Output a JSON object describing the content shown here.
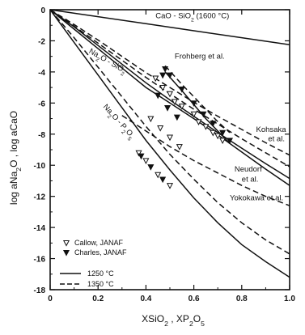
{
  "chart_data": {
    "type": "line",
    "xlim": [
      0,
      1.0
    ],
    "ylim": [
      -18,
      0
    ],
    "x_ticks": [
      "0",
      "0.2",
      "0.4",
      "0.6",
      "0.8",
      "1.0"
    ],
    "y_ticks": [
      "0",
      "-2",
      "-4",
      "-6",
      "-8",
      "-10",
      "-12",
      "-14",
      "-16",
      "-18"
    ],
    "xlabel": "X_SiO2 , X_P2O5",
    "ylabel": "log a_Na2O ,   log a_CaO",
    "grid": false,
    "legend_position": "bottom-left",
    "legend": {
      "markers": [
        {
          "symbol": "▽",
          "label": "Callow, JANAF"
        },
        {
          "symbol": "▼",
          "label": "Charles, JANAF"
        }
      ],
      "lines": [
        {
          "style": "solid",
          "label": "1250 °C"
        },
        {
          "style": "dashed",
          "label": "1350 °C"
        }
      ]
    },
    "annotations": [
      {
        "text": "CaO - SiO2   (1600 °C)",
        "x": 0.44,
        "y": -0.55
      },
      {
        "text": "Na2O - SiO2",
        "x": 0.16,
        "y": -2.75
      },
      {
        "text": "Frohberg et al.",
        "x": 0.52,
        "y": -3.15
      },
      {
        "text": "Na2O - P2O5",
        "x": 0.22,
        "y": -6.25
      },
      {
        "text": "Kohsaka",
        "x": 0.86,
        "y": -7.85
      },
      {
        "text": "et al.",
        "x": 0.91,
        "y": -8.45
      },
      {
        "text": "Neudorf",
        "x": 0.77,
        "y": -10.4
      },
      {
        "text": "et al.",
        "x": 0.8,
        "y": -11.05
      },
      {
        "text": "Yokokawa et al.",
        "x": 0.75,
        "y": -12.25
      }
    ],
    "series": [
      {
        "style": "solid",
        "x": [
          0,
          0.2,
          0.4,
          0.6,
          0.8,
          1.0
        ],
        "y": [
          0,
          -0.45,
          -0.9,
          -1.35,
          -1.8,
          -2.25
        ]
      },
      {
        "style": "solid",
        "x": [
          0,
          0.1,
          0.2,
          0.3,
          0.4,
          0.5,
          0.6,
          0.7,
          0.8,
          0.9,
          1.0
        ],
        "y": [
          0,
          -1.25,
          -2.5,
          -3.75,
          -5.0,
          -6.0,
          -7.0,
          -8.05,
          -9.15,
          -10.25,
          -11.3
        ]
      },
      {
        "style": "solid",
        "x": [
          0,
          0.1,
          0.2,
          0.3,
          0.4,
          0.5,
          0.6,
          0.7,
          0.8,
          0.9,
          1.0
        ],
        "y": [
          0,
          -1.1,
          -2.3,
          -3.5,
          -4.7,
          -5.8,
          -6.85,
          -7.9,
          -8.9,
          -9.9,
          -10.85
        ]
      },
      {
        "style": "dashed",
        "x": [
          0,
          0.1,
          0.2,
          0.3,
          0.4,
          0.5,
          0.6,
          0.7,
          0.8,
          0.9,
          1.0
        ],
        "y": [
          0,
          -1.05,
          -2.15,
          -3.25,
          -4.35,
          -5.4,
          -6.4,
          -7.35,
          -8.3,
          -9.2,
          -10.1
        ]
      },
      {
        "style": "dashed",
        "x": [
          0,
          0.1,
          0.2,
          0.3,
          0.4,
          0.5,
          0.6,
          0.7,
          0.8,
          0.9,
          1.0
        ],
        "y": [
          0,
          -0.95,
          -1.95,
          -3.0,
          -4.05,
          -5.0,
          -5.95,
          -6.85,
          -7.7,
          -8.55,
          -9.35
        ]
      },
      {
        "style": "solid",
        "x": [
          0.48,
          0.55,
          0.6,
          0.65,
          0.7,
          0.75
        ],
        "y": [
          -4.0,
          -5.2,
          -6.1,
          -7.0,
          -7.8,
          -8.6
        ]
      },
      {
        "style": "dashed",
        "x": [
          0.48,
          0.55,
          0.6,
          0.65,
          0.7,
          0.75
        ],
        "y": [
          -3.6,
          -4.8,
          -5.6,
          -6.4,
          -7.2,
          -7.9
        ]
      },
      {
        "style": "solid",
        "x": [
          0,
          0.1,
          0.2,
          0.3,
          0.4,
          0.5,
          0.6,
          0.7,
          0.8,
          0.9,
          1.0
        ],
        "y": [
          0,
          -2.1,
          -4.2,
          -6.3,
          -8.4,
          -10.3,
          -12.1,
          -13.7,
          -15.1,
          -16.2,
          -17.2
        ]
      },
      {
        "style": "dashed",
        "x": [
          0,
          0.1,
          0.2,
          0.3,
          0.4,
          0.5,
          0.6,
          0.7,
          0.8,
          0.9,
          1.0
        ],
        "y": [
          0,
          -1.8,
          -3.7,
          -5.6,
          -7.5,
          -9.3,
          -10.9,
          -12.4,
          -13.7,
          -14.8,
          -15.7
        ]
      },
      {
        "style": "dashed",
        "x": [
          0.3,
          0.4,
          0.5,
          0.6,
          0.7,
          0.8,
          0.9,
          1.0
        ],
        "y": [
          -6.8,
          -7.8,
          -8.8,
          -9.7,
          -10.5,
          -11.3,
          -12.0,
          -12.6
        ]
      }
    ],
    "points_callow": {
      "x": [
        0.44,
        0.47,
        0.5,
        0.52,
        0.55,
        0.6,
        0.62,
        0.65,
        0.68,
        0.7,
        0.72,
        0.42,
        0.46,
        0.5,
        0.54,
        0.37,
        0.4,
        0.45,
        0.5
      ],
      "y": [
        -4.4,
        -5.0,
        -5.4,
        -5.9,
        -6.2,
        -6.7,
        -7.2,
        -7.5,
        -7.9,
        -8.1,
        -8.4,
        -7.0,
        -7.6,
        -8.2,
        -8.8,
        -9.2,
        -9.7,
        -10.6,
        -11.3
      ]
    },
    "points_charles": {
      "x": [
        0.48,
        0.5,
        0.55,
        0.6,
        0.64,
        0.68,
        0.72,
        0.75,
        0.45,
        0.49,
        0.53,
        0.38,
        0.42,
        0.47,
        0.47
      ],
      "y": [
        -3.8,
        -4.2,
        -5.1,
        -6.0,
        -6.7,
        -7.3,
        -7.9,
        -8.4,
        -5.5,
        -6.3,
        -6.9,
        -9.4,
        -10.1,
        -10.9,
        -4.2
      ]
    }
  }
}
